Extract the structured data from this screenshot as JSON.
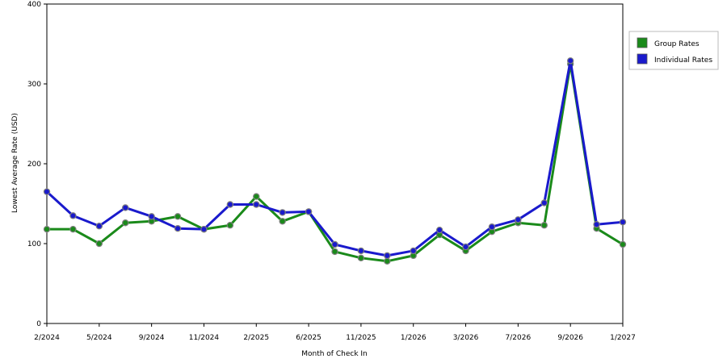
{
  "chart_data": {
    "type": "line",
    "title": "",
    "xlabel": "Month of Check In",
    "ylabel": "Lowest Average Rate (USD)",
    "ylim": [
      0,
      400
    ],
    "yticks": [
      0,
      100,
      200,
      300,
      400
    ],
    "grid": true,
    "legend_position": "right",
    "x_tick_labels": [
      "2/2024",
      "5/2024",
      "9/2024",
      "11/2024",
      "2/2025",
      "6/2025",
      "11/2025",
      "1/2026",
      "3/2026",
      "7/2026",
      "9/2026",
      "1/2027"
    ],
    "x_tick_positions": [
      0,
      2,
      4,
      6,
      8,
      10,
      12,
      14,
      16,
      18,
      20,
      22
    ],
    "x_count": 23,
    "series": [
      {
        "name": "Group Rates",
        "color": "#1a8a1a",
        "values": [
          118,
          118,
          100,
          126,
          128,
          134,
          118,
          123,
          159,
          128,
          140,
          90,
          82,
          78,
          85,
          111,
          91,
          115,
          126,
          123,
          325,
          119,
          99
        ]
      },
      {
        "name": "Individual Rates",
        "color": "#1a1acc",
        "values": [
          165,
          135,
          122,
          145,
          134,
          119,
          118,
          149,
          149,
          139,
          140,
          99,
          91,
          85,
          91,
          117,
          96,
          121,
          130,
          151,
          329,
          124,
          127
        ]
      }
    ]
  }
}
